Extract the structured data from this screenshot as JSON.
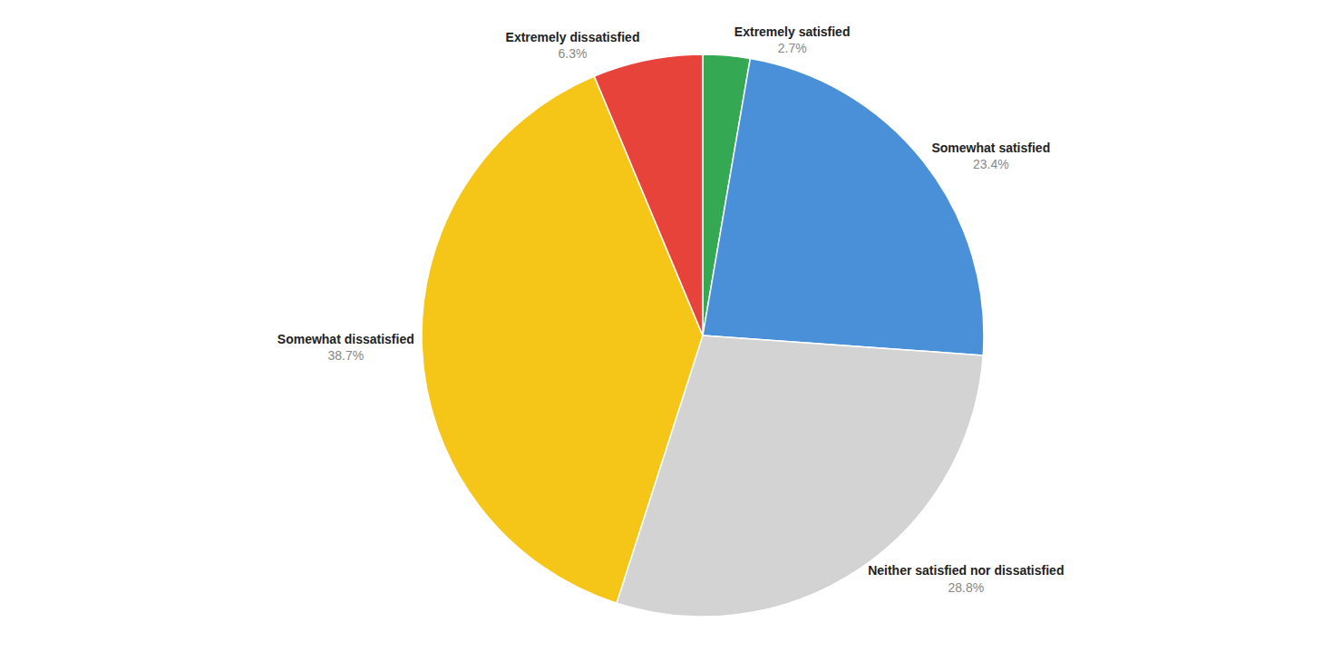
{
  "chart_data": {
    "type": "pie",
    "categories": [
      "Extremely satisfied",
      "Somewhat satisfied",
      "Neither satisfied nor dissatisfied",
      "Somewhat dissatisfied",
      "Extremely dissatisfied"
    ],
    "values": [
      2.7,
      23.4,
      28.8,
      38.7,
      6.3
    ],
    "value_labels": [
      "2.7%",
      "23.4%",
      "28.8%",
      "38.7%",
      "6.3%"
    ],
    "colors": [
      "#34A853",
      "#4A90D9",
      "#D3D3D3",
      "#F5C518",
      "#E8433A"
    ],
    "data_labels": true
  }
}
